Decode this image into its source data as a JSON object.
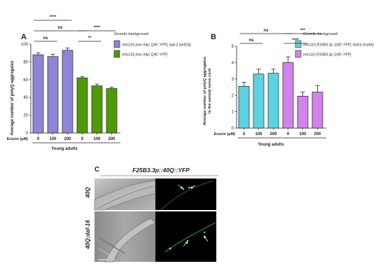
{
  "chart_data": [
    {
      "type": "bar",
      "panel_label": "A",
      "ylabel": "Average number of polyQ aggregates",
      "ylim": [
        0,
        100
      ],
      "yticks": [
        0,
        20,
        40,
        60,
        80,
        100
      ],
      "categories": [
        "0",
        "100",
        "200",
        "0",
        "100",
        "200"
      ],
      "values": [
        88,
        86,
        93,
        62,
        53,
        50
      ],
      "errors": [
        2,
        2.5,
        2.5,
        1.5,
        2,
        1.5
      ],
      "bar_series": [
        0,
        0,
        0,
        1,
        1,
        1
      ],
      "xaxis_prefix": "Erucin (μM)",
      "group_label": "Young adults",
      "legend_title": "Genetic background",
      "series": [
        {
          "name": "rmIs133 [unc-54p::Q40::YFP]; aak-2 (ok524)",
          "color": "#8d86d6"
        },
        {
          "name": "rmIs133 [unc-54p::Q40::YFP]",
          "color": "#4e9a06"
        }
      ],
      "significance": [
        {
          "from": 0,
          "to": 2,
          "label": "****",
          "level": 3
        },
        {
          "from": 0,
          "to": 1,
          "label": "ns",
          "level": 1
        },
        {
          "from": 0,
          "to": 3,
          "label": "ns",
          "level": 2
        },
        {
          "from": 3,
          "to": 5,
          "label": "****",
          "level": 2
        },
        {
          "from": 3,
          "to": 4,
          "label": "**",
          "level": 1
        }
      ]
    },
    {
      "type": "bar",
      "panel_label": "B",
      "ylabel": "Average number of polyQ aggregates in the ventral nerve cord",
      "ylim": [
        0,
        5
      ],
      "yticks": [
        0,
        1,
        2,
        3,
        4,
        5
      ],
      "categories": [
        "0",
        "100",
        "200",
        "0",
        "100",
        "200"
      ],
      "values": [
        2.55,
        3.3,
        3.35,
        4.0,
        1.95,
        2.2
      ],
      "errors": [
        0.25,
        0.3,
        0.25,
        0.35,
        0.25,
        0.4
      ],
      "bar_series": [
        0,
        0,
        0,
        1,
        1,
        1
      ],
      "xaxis_prefix": "Erucin (μM)",
      "group_label": "Young adults",
      "legend_title": "Genetic background",
      "series": [
        {
          "name": "rmIs110 [F25B3.3p::Q40::YFP]; daf16 (mu86)",
          "color": "#5bd3e0"
        },
        {
          "name": "rmIs110 [F25B3.3p::Q40::YFP]",
          "color": "#d283ee"
        }
      ],
      "significance": [
        {
          "from": 0,
          "to": 3,
          "label": "ns",
          "level": 2
        },
        {
          "from": 0,
          "to": 1,
          "label": "ns",
          "level": 1
        },
        {
          "from": 3,
          "to": 5,
          "label": "***",
          "level": 2
        },
        {
          "from": 3,
          "to": 4,
          "label": "****",
          "level": 1
        }
      ]
    }
  ],
  "panel_c": {
    "label": "C",
    "title": "F25B3.3p::40Q::YFP",
    "rows": [
      "40Q",
      "40Q;daf-16"
    ]
  }
}
